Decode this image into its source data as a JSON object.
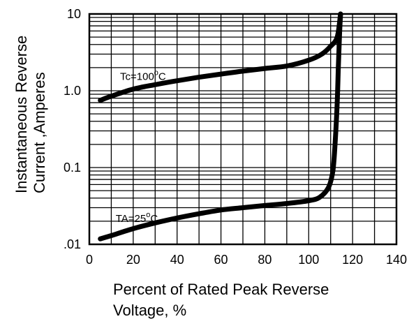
{
  "chart_data": {
    "type": "line",
    "title": "",
    "xlabel_lines": [
      "Percent of Rated Peak Reverse",
      "Voltage, %"
    ],
    "ylabel_lines": [
      "Instantaneous Reverse",
      "Current ,Amperes"
    ],
    "x_ticks": [
      "0",
      "20",
      "40",
      "60",
      "80",
      "100",
      "120",
      "140"
    ],
    "y_ticks": [
      ".01",
      "0.1",
      "1.0",
      "10"
    ],
    "xlim": [
      0,
      140
    ],
    "ylim": [
      0.01,
      10
    ],
    "y_scale": "log",
    "grid": true,
    "series": [
      {
        "name": "Tc=100°C",
        "label_text": "Tc=100",
        "label_sup": "o",
        "label_suffix": "C",
        "x": [
          5,
          10,
          20,
          30,
          40,
          50,
          60,
          70,
          80,
          90,
          100,
          106,
          110,
          113,
          114.5
        ],
        "y": [
          0.75,
          0.85,
          1.05,
          1.2,
          1.35,
          1.5,
          1.65,
          1.8,
          1.95,
          2.1,
          2.5,
          3.0,
          3.8,
          5.0,
          10
        ]
      },
      {
        "name": "TA=25°C",
        "label_text": "TA=25",
        "label_sup": "o",
        "label_suffix": "C",
        "x": [
          5,
          10,
          20,
          30,
          40,
          50,
          60,
          70,
          80,
          90,
          100,
          105,
          109,
          111,
          112,
          113,
          113.5,
          114,
          114.5
        ],
        "y": [
          0.0118,
          0.013,
          0.016,
          0.019,
          0.022,
          0.025,
          0.028,
          0.03,
          0.032,
          0.034,
          0.037,
          0.041,
          0.055,
          0.09,
          0.2,
          0.7,
          2.0,
          5.0,
          10
        ]
      }
    ]
  }
}
